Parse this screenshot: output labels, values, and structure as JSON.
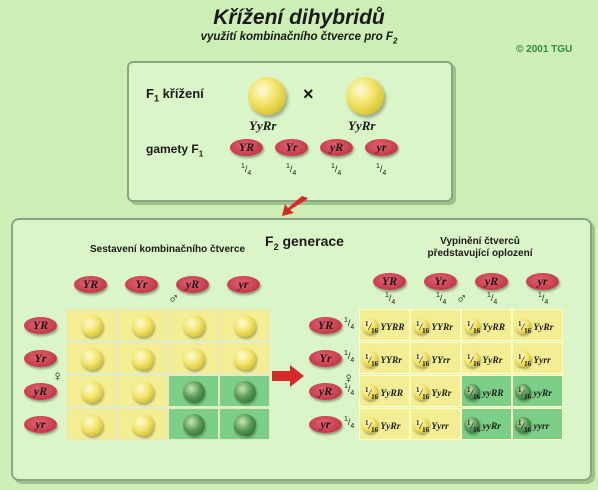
{
  "title": "Křížení dihybridů",
  "subtitle": "využití kombinačního čtverce pro F",
  "subtitle_sub": "2",
  "copyright": "© 2001 TGU",
  "top": {
    "cross_label": "F",
    "cross_label_sub": "1",
    "cross_label_rest": " křížení",
    "parent_genotypes": [
      "YyRr",
      "YyRr"
    ],
    "cross_symbol": "×",
    "gametes_label": "gamety F",
    "gametes_label_sub": "1",
    "gametes": [
      "YR",
      "Yr",
      "yR",
      "yr"
    ],
    "fraction": "1/4"
  },
  "bottom": {
    "title": "F",
    "title_sub": "2",
    "title_rest": " generace",
    "left_heading": "Sestavení kombinačního čtverce",
    "right_heading_1": "Vypinění čtverců",
    "right_heading_2": "představující oplození",
    "male_symbol": "♂",
    "female_symbol": "♀",
    "gametes": [
      "YR",
      "Yr",
      "yR",
      "yr"
    ],
    "fraction": "1/4",
    "cell_fraction": "1/16",
    "genotypes": [
      [
        "YYRR",
        "YYRr",
        "YyRR",
        "YyRr"
      ],
      [
        "YYRr",
        "YYrr",
        "YyRr",
        "Yyrr"
      ],
      [
        "YyRR",
        "YyRr",
        "yyRR",
        "yyRr"
      ],
      [
        "YyRr",
        "Yyrr",
        "yyRr",
        "yyrr"
      ]
    ],
    "phenotype_colors": {
      "yellow": "#f3ee93",
      "green": "#7ccf86"
    }
  },
  "colors": {
    "background": "#cdeeb4",
    "gamete": "#c9404f",
    "arrow": "#d42a2a",
    "copyright": "#2f8a45"
  }
}
